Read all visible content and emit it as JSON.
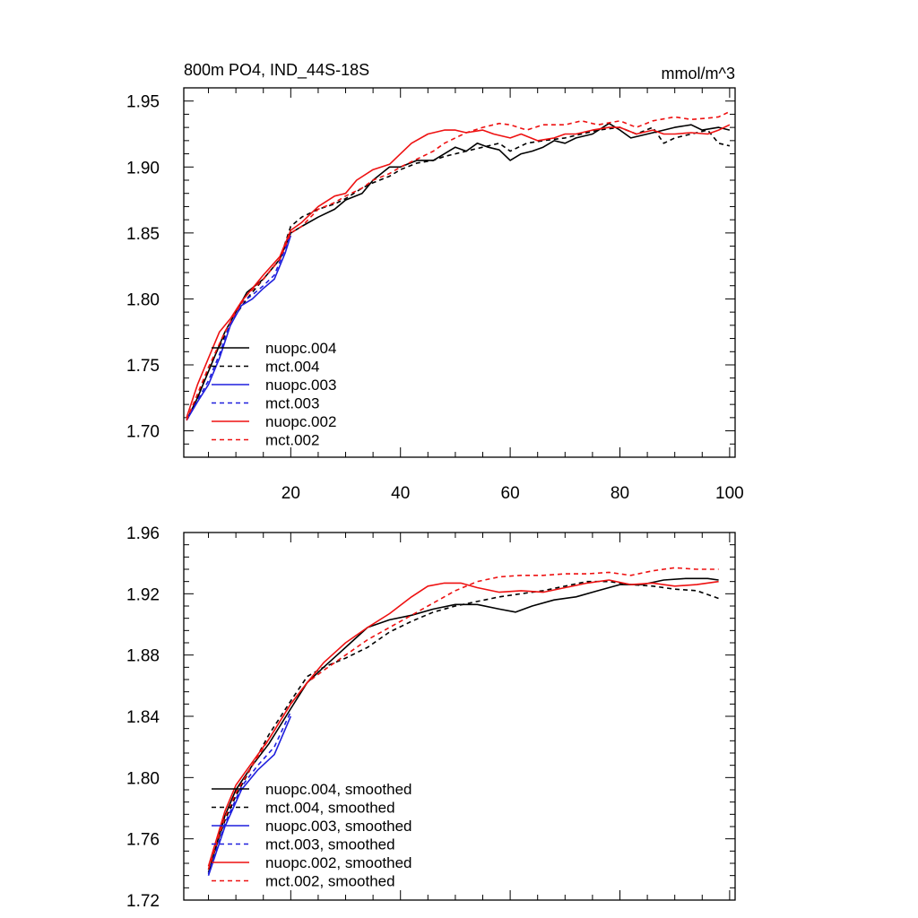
{
  "chart_data": [
    {
      "type": "line",
      "title": "800m PO4, IND_44S-18S",
      "units": "mmol/m^3",
      "xlim": [
        0.5,
        101
      ],
      "ylim": [
        1.68,
        1.96
      ],
      "xticks": [
        20,
        40,
        60,
        80,
        100
      ],
      "xtick_labels": [
        "20",
        "40",
        "60",
        "80",
        "100"
      ],
      "yticks": [
        1.7,
        1.75,
        1.8,
        1.85,
        1.9,
        1.95
      ],
      "ytick_labels": [
        "1.70",
        "1.75",
        "1.80",
        "1.85",
        "1.90",
        "1.95"
      ],
      "legend_location": "lower-left",
      "series": [
        {
          "name": "nuopc.004",
          "color": "#000000",
          "dash": false,
          "x": [
            1,
            3,
            5,
            8,
            10,
            12,
            15,
            18,
            20,
            22,
            25,
            28,
            30,
            33,
            35,
            38,
            40,
            43,
            46,
            48,
            50,
            52,
            54,
            56,
            58,
            60,
            62,
            64,
            66,
            68,
            70,
            72,
            75,
            78,
            80,
            82,
            85,
            88,
            90,
            93,
            95,
            98,
            100
          ],
          "y": [
            1.708,
            1.725,
            1.745,
            1.775,
            1.79,
            1.805,
            1.815,
            1.83,
            1.85,
            1.855,
            1.862,
            1.868,
            1.875,
            1.88,
            1.89,
            1.9,
            1.9,
            1.905,
            1.905,
            1.91,
            1.915,
            1.912,
            1.918,
            1.915,
            1.913,
            1.905,
            1.91,
            1.912,
            1.915,
            1.92,
            1.918,
            1.922,
            1.925,
            1.933,
            1.928,
            1.922,
            1.925,
            1.928,
            1.93,
            1.932,
            1.928,
            1.93,
            1.928
          ]
        },
        {
          "name": "mct.004",
          "color": "#000000",
          "dash": true,
          "x": [
            1,
            3,
            5,
            8,
            10,
            12,
            15,
            18,
            20,
            22,
            25,
            28,
            30,
            33,
            35,
            38,
            40,
            43,
            46,
            48,
            50,
            52,
            55,
            58,
            60,
            63,
            66,
            70,
            73,
            76,
            80,
            83,
            86,
            88,
            90,
            93,
            96,
            98,
            100
          ],
          "y": [
            1.708,
            1.725,
            1.748,
            1.772,
            1.788,
            1.8,
            1.815,
            1.83,
            1.855,
            1.862,
            1.868,
            1.872,
            1.876,
            1.884,
            1.888,
            1.893,
            1.898,
            1.903,
            1.905,
            1.908,
            1.91,
            1.912,
            1.915,
            1.918,
            1.912,
            1.918,
            1.92,
            1.922,
            1.925,
            1.928,
            1.93,
            1.925,
            1.93,
            1.918,
            1.922,
            1.925,
            1.928,
            1.918,
            1.916
          ]
        },
        {
          "name": "nuopc.003",
          "color": "#1f1fdd",
          "dash": false,
          "x": [
            1,
            3,
            5,
            7,
            9,
            11,
            13,
            15,
            17,
            19,
            20
          ],
          "y": [
            1.708,
            1.722,
            1.735,
            1.755,
            1.78,
            1.795,
            1.8,
            1.808,
            1.815,
            1.835,
            1.848
          ]
        },
        {
          "name": "mct.003",
          "color": "#1f1fdd",
          "dash": true,
          "x": [
            1,
            3,
            5,
            7,
            9,
            11,
            13,
            15,
            17,
            19,
            20
          ],
          "y": [
            1.708,
            1.723,
            1.738,
            1.758,
            1.782,
            1.797,
            1.803,
            1.81,
            1.818,
            1.838,
            1.85
          ]
        },
        {
          "name": "nuopc.002",
          "color": "#ee1111",
          "dash": false,
          "x": [
            1,
            3,
            5,
            7,
            9,
            11,
            13,
            15,
            18,
            20,
            22,
            25,
            28,
            30,
            32,
            35,
            38,
            40,
            42,
            45,
            48,
            50,
            52,
            55,
            57,
            60,
            62,
            65,
            68,
            70,
            72,
            75,
            78,
            80,
            83,
            86,
            88,
            90,
            93,
            96,
            98,
            100
          ],
          "y": [
            1.71,
            1.735,
            1.755,
            1.775,
            1.785,
            1.798,
            1.808,
            1.818,
            1.832,
            1.852,
            1.858,
            1.87,
            1.878,
            1.88,
            1.89,
            1.898,
            1.902,
            1.91,
            1.918,
            1.925,
            1.928,
            1.928,
            1.926,
            1.928,
            1.925,
            1.922,
            1.925,
            1.92,
            1.922,
            1.925,
            1.925,
            1.928,
            1.93,
            1.93,
            1.925,
            1.928,
            1.925,
            1.925,
            1.926,
            1.925,
            1.928,
            1.932
          ]
        },
        {
          "name": "mct.002",
          "color": "#ee1111",
          "dash": true,
          "x": [
            1,
            3,
            5,
            8,
            10,
            12,
            15,
            18,
            20,
            22,
            25,
            28,
            30,
            33,
            35,
            38,
            40,
            43,
            46,
            48,
            50,
            52,
            55,
            58,
            60,
            63,
            66,
            70,
            73,
            76,
            80,
            83,
            86,
            90,
            93,
            96,
            98,
            100
          ],
          "y": [
            1.708,
            1.728,
            1.748,
            1.775,
            1.79,
            1.803,
            1.815,
            1.83,
            1.85,
            1.855,
            1.868,
            1.873,
            1.878,
            1.884,
            1.89,
            1.895,
            1.9,
            1.906,
            1.912,
            1.918,
            1.922,
            1.926,
            1.93,
            1.933,
            1.932,
            1.928,
            1.932,
            1.932,
            1.935,
            1.932,
            1.935,
            1.93,
            1.935,
            1.938,
            1.936,
            1.937,
            1.938,
            1.942
          ]
        }
      ]
    },
    {
      "type": "line",
      "xlim": [
        0.5,
        101
      ],
      "ylim": [
        1.72,
        1.96
      ],
      "xticks": [
        20,
        40,
        60,
        80,
        100
      ],
      "xtick_labels": [],
      "yticks": [
        1.72,
        1.76,
        1.8,
        1.84,
        1.88,
        1.92,
        1.96
      ],
      "ytick_labels": [
        "1.72",
        "1.76",
        "1.80",
        "1.84",
        "1.88",
        "1.92",
        "1.96"
      ],
      "legend_location": "lower-left",
      "series": [
        {
          "name": "nuopc.004, smoothed",
          "color": "#000000",
          "dash": false,
          "x": [
            5,
            8,
            10,
            13,
            16,
            20,
            23,
            26,
            30,
            34,
            38,
            42,
            46,
            50,
            54,
            58,
            61,
            64,
            68,
            72,
            76,
            80,
            84,
            88,
            92,
            96,
            98
          ],
          "y": [
            1.738,
            1.775,
            1.792,
            1.808,
            1.822,
            1.845,
            1.862,
            1.872,
            1.885,
            1.898,
            1.903,
            1.906,
            1.91,
            1.913,
            1.913,
            1.91,
            1.908,
            1.912,
            1.916,
            1.918,
            1.922,
            1.926,
            1.926,
            1.929,
            1.93,
            1.93,
            1.929
          ]
        },
        {
          "name": "mct.004, smoothed",
          "color": "#000000",
          "dash": true,
          "x": [
            5,
            8,
            10,
            13,
            16,
            20,
            23,
            26,
            30,
            34,
            38,
            42,
            46,
            50,
            54,
            58,
            62,
            66,
            70,
            74,
            78,
            82,
            86,
            90,
            94,
            98
          ],
          "y": [
            1.74,
            1.772,
            1.788,
            1.808,
            1.828,
            1.85,
            1.866,
            1.872,
            1.878,
            1.885,
            1.895,
            1.902,
            1.908,
            1.912,
            1.915,
            1.918,
            1.92,
            1.922,
            1.925,
            1.928,
            1.928,
            1.926,
            1.925,
            1.923,
            1.922,
            1.917
          ]
        },
        {
          "name": "nuopc.003, smoothed",
          "color": "#1f1fdd",
          "dash": false,
          "x": [
            5,
            8,
            11,
            14,
            17,
            20
          ],
          "y": [
            1.736,
            1.768,
            1.792,
            1.805,
            1.815,
            1.84
          ]
        },
        {
          "name": "mct.003, smoothed",
          "color": "#1f1fdd",
          "dash": true,
          "x": [
            5,
            8,
            11,
            14,
            17,
            20
          ],
          "y": [
            1.737,
            1.77,
            1.794,
            1.808,
            1.82,
            1.843
          ]
        },
        {
          "name": "nuopc.002, smoothed",
          "color": "#ee1111",
          "dash": false,
          "x": [
            5,
            8,
            10,
            13,
            16,
            20,
            23,
            26,
            30,
            34,
            38,
            42,
            45,
            48,
            51,
            54,
            58,
            62,
            66,
            70,
            74,
            78,
            82,
            86,
            90,
            94,
            98
          ],
          "y": [
            1.742,
            1.778,
            1.795,
            1.81,
            1.825,
            1.848,
            1.862,
            1.875,
            1.888,
            1.898,
            1.907,
            1.918,
            1.925,
            1.927,
            1.927,
            1.924,
            1.921,
            1.922,
            1.921,
            1.924,
            1.927,
            1.929,
            1.926,
            1.927,
            1.925,
            1.926,
            1.928
          ]
        },
        {
          "name": "mct.002, smoothed",
          "color": "#ee1111",
          "dash": true,
          "x": [
            5,
            8,
            10,
            13,
            16,
            20,
            23,
            26,
            30,
            34,
            38,
            42,
            46,
            50,
            54,
            58,
            62,
            66,
            70,
            74,
            78,
            82,
            86,
            90,
            94,
            98
          ],
          "y": [
            1.74,
            1.774,
            1.79,
            1.808,
            1.825,
            1.848,
            1.862,
            1.87,
            1.88,
            1.89,
            1.898,
            1.906,
            1.914,
            1.922,
            1.928,
            1.931,
            1.932,
            1.932,
            1.933,
            1.933,
            1.934,
            1.932,
            1.935,
            1.937,
            1.936,
            1.936
          ]
        }
      ]
    }
  ]
}
